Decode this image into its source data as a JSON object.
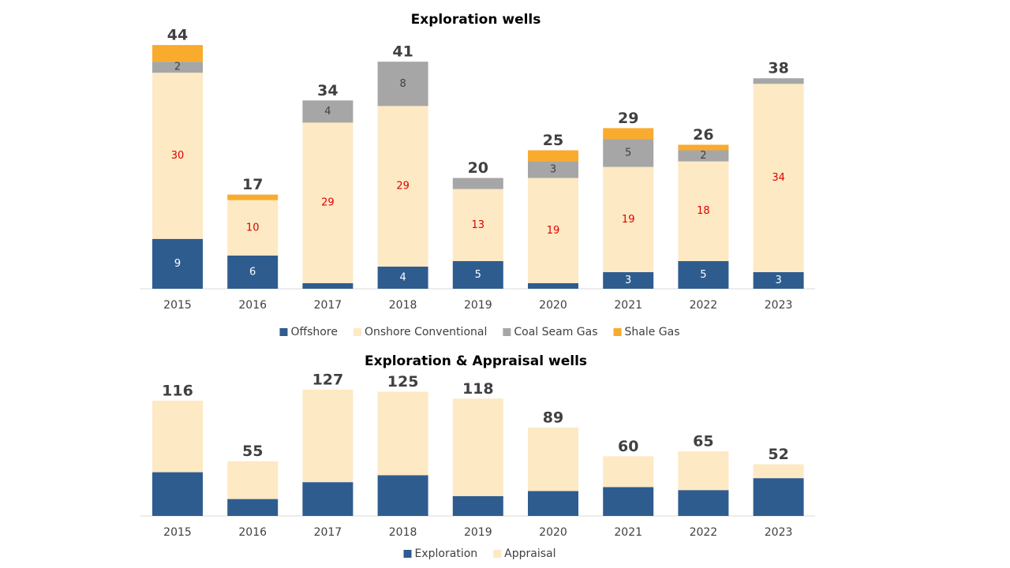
{
  "chart_data": [
    {
      "type": "stacked-bar",
      "title": "Exploration wells",
      "categories": [
        "2015",
        "2016",
        "2017",
        "2018",
        "2019",
        "2020",
        "2021",
        "2022",
        "2023"
      ],
      "ylim": [
        0,
        50
      ],
      "totals": [
        44,
        17,
        34,
        41,
        20,
        25,
        29,
        26,
        38
      ],
      "series": [
        {
          "name": "Offshore",
          "color": "#2e5c8f",
          "label_color": "#ffffff",
          "values": [
            9,
            6,
            1,
            4,
            5,
            1,
            3,
            5,
            3
          ],
          "value_labels": [
            "9",
            "6",
            null,
            "4",
            "5",
            null,
            "3",
            "5",
            "3"
          ]
        },
        {
          "name": "Onshore Conventional",
          "color": "#fde9c4",
          "label_color": "#e00000",
          "values": [
            30,
            10,
            29,
            29,
            13,
            19,
            19,
            18,
            34
          ],
          "value_labels": [
            "30",
            "10",
            "29",
            "29",
            "13",
            "19",
            "19",
            "18",
            "34"
          ]
        },
        {
          "name": "Coal Seam Gas",
          "color": "#a6a6a6",
          "label_color": "#404040",
          "values": [
            2,
            0,
            4,
            8,
            2,
            3,
            5,
            2,
            1
          ],
          "value_labels": [
            "2",
            null,
            "4",
            "8",
            null,
            "3",
            "5",
            "2",
            null
          ]
        },
        {
          "name": "Shale Gas",
          "color": "#f9ab2e",
          "label_color": "#404040",
          "values": [
            3,
            1,
            0,
            0,
            0,
            2,
            2,
            1,
            0
          ]
        }
      ]
    },
    {
      "type": "stacked-bar",
      "title": "Exploration & Appraisal wells",
      "categories": [
        "2015",
        "2016",
        "2017",
        "2018",
        "2019",
        "2020",
        "2021",
        "2022",
        "2023"
      ],
      "ylim": [
        0,
        150
      ],
      "totals": [
        116,
        55,
        127,
        125,
        118,
        89,
        60,
        65,
        52
      ],
      "series": [
        {
          "name": "Exploration",
          "color": "#2e5c8f",
          "values": [
            44,
            17,
            34,
            41,
            20,
            25,
            29,
            26,
            38
          ]
        },
        {
          "name": "Appraisal",
          "color": "#fde9c4",
          "values": [
            72,
            38,
            93,
            84,
            98,
            64,
            31,
            39,
            14
          ]
        }
      ]
    }
  ]
}
